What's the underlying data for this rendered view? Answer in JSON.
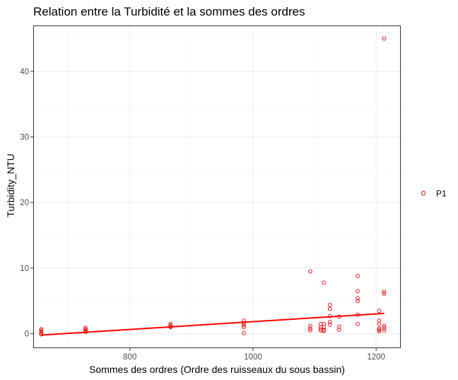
{
  "chart_data": {
    "type": "scatter",
    "title": "Relation entre la Turbidité et la sommes des ordres",
    "xlabel": "Sommes des ordres (Ordre des ruisseaux du sous bassin)",
    "ylabel": "Turbidity_NTU",
    "xlim": [
      643,
      1240
    ],
    "ylim": [
      -2.2,
      47.0
    ],
    "xticks": [
      800,
      1000,
      1200
    ],
    "yticks": [
      0,
      10,
      20,
      30,
      40
    ],
    "grid": true,
    "legend_position": "right",
    "series": [
      {
        "name": "P1",
        "color": "#e41a1c",
        "marker": "open-circle",
        "points": [
          [
            656,
            0.7
          ],
          [
            656,
            0.5
          ],
          [
            656,
            0.3
          ],
          [
            656,
            0.1
          ],
          [
            656,
            -0.1
          ],
          [
            728,
            0.9
          ],
          [
            728,
            0.7
          ],
          [
            728,
            0.5
          ],
          [
            728,
            0.4
          ],
          [
            728,
            0.3
          ],
          [
            866,
            1.5
          ],
          [
            866,
            1.3
          ],
          [
            866,
            1.1
          ],
          [
            866,
            1.0
          ],
          [
            985,
            2.0
          ],
          [
            985,
            1.6
          ],
          [
            985,
            1.3
          ],
          [
            985,
            1.0
          ],
          [
            985,
            0.1
          ],
          [
            1093,
            9.5
          ],
          [
            1093,
            1.2
          ],
          [
            1093,
            0.8
          ],
          [
            1093,
            0.5
          ],
          [
            1110,
            1.5
          ],
          [
            1110,
            1.0
          ],
          [
            1110,
            0.7
          ],
          [
            1110,
            0.5
          ],
          [
            1115,
            7.8
          ],
          [
            1115,
            1.5
          ],
          [
            1115,
            1.0
          ],
          [
            1115,
            0.6
          ],
          [
            1115,
            0.4
          ],
          [
            1125,
            4.4
          ],
          [
            1125,
            3.8
          ],
          [
            1125,
            2.7
          ],
          [
            1125,
            1.8
          ],
          [
            1125,
            1.4
          ],
          [
            1140,
            2.6
          ],
          [
            1140,
            1.1
          ],
          [
            1140,
            0.6
          ],
          [
            1170,
            8.8
          ],
          [
            1170,
            6.5
          ],
          [
            1170,
            5.4
          ],
          [
            1170,
            5.0
          ],
          [
            1170,
            2.9
          ],
          [
            1170,
            1.5
          ],
          [
            1205,
            3.5
          ],
          [
            1205,
            2.0
          ],
          [
            1205,
            1.5
          ],
          [
            1205,
            0.8
          ],
          [
            1205,
            0.6
          ],
          [
            1205,
            0.4
          ],
          [
            1213,
            45.0
          ],
          [
            1213,
            6.4
          ],
          [
            1213,
            6.1
          ],
          [
            1213,
            1.2
          ],
          [
            1213,
            0.9
          ],
          [
            1213,
            0.5
          ]
        ]
      }
    ],
    "trend_line": {
      "color": "#ff0000",
      "x": [
        656,
        1213
      ],
      "y": [
        -0.2,
        3.1
      ]
    }
  }
}
